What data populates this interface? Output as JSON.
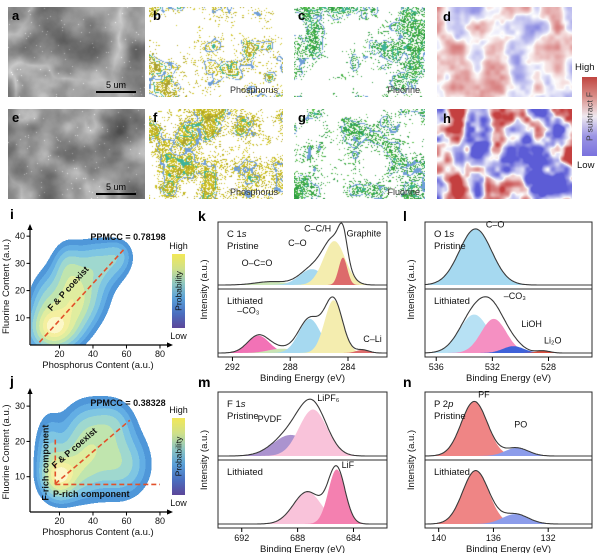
{
  "panels": {
    "a": {
      "letter": "a",
      "type": "sem-micrograph",
      "scalebar": "5 um"
    },
    "b": {
      "letter": "b",
      "type": "element-map",
      "element": "Phosphorus",
      "dot_colors": [
        "#d2c629",
        "#b4a81e"
      ],
      "contour_colors": [
        "#6f9fd8",
        "#3fb39a",
        "#aaa232"
      ]
    },
    "c": {
      "letter": "c",
      "type": "element-map",
      "element": "Fluorine",
      "dot_colors": [
        "#2f9e44",
        "#5cc24e"
      ],
      "contour_colors": [
        "#6f9fd8",
        "#3fb39a"
      ]
    },
    "d": {
      "letter": "d",
      "type": "subtract-map"
    },
    "e": {
      "letter": "e",
      "type": "sem-micrograph",
      "scalebar": "5 um"
    },
    "f": {
      "letter": "f",
      "type": "element-map",
      "element": "Phosphorus",
      "dot_colors": [
        "#d2c629",
        "#b4a81e"
      ],
      "contour_colors": [
        "#6f9fd8",
        "#3fb39a",
        "#aaa232"
      ]
    },
    "g": {
      "letter": "g",
      "type": "element-map",
      "element": "Fluorine",
      "dot_colors": [
        "#2f9e44",
        "#5cc24e"
      ],
      "contour_colors": [
        "#6f9fd8",
        "#3fb39a"
      ]
    },
    "h": {
      "letter": "h",
      "type": "subtract-map"
    }
  },
  "subtract_colorbar": {
    "high": "High",
    "low": "Low",
    "label": "P subtract F",
    "gradient": [
      "#c04540",
      "#d98f89",
      "#efe9f0",
      "#9b94e4",
      "#7a72dd"
    ]
  },
  "chart_data": [
    {
      "id": "i",
      "panel_letter": "i",
      "type": "density2d",
      "annotation": "PPMCC = 0.78198",
      "xlabel": "Phosphorus Content (a.u.)",
      "ylabel": "Fluorine Content (a.u.)",
      "x_ticks": [
        20,
        40,
        60,
        80
      ],
      "y_ticks": [
        10,
        20,
        30,
        40
      ],
      "x_range": [
        3,
        83
      ],
      "y_range": [
        0,
        43
      ],
      "colorbar": {
        "high": "High",
        "low": "Low",
        "label": "Probability",
        "gradient": [
          "#f2e857",
          "#cfe08a",
          "#8ec6c0",
          "#5aa0d8",
          "#4a6fc0",
          "#5c4699"
        ]
      },
      "line_color": "#e2512a",
      "lines": [
        {
          "x1": 8,
          "y1": 1,
          "x2": 59,
          "y2": 35.5
        }
      ],
      "annotations": [
        {
          "text": "F & P coexist",
          "x": 26.5,
          "y": 20,
          "angle": -48
        }
      ],
      "kernels": [
        {
          "x": 17,
          "y": 6,
          "sx": 8,
          "sy": 4.5,
          "w": 1.0
        },
        {
          "x": 27,
          "y": 13,
          "sx": 8,
          "sy": 6,
          "w": 0.5
        },
        {
          "x": 12,
          "y": 13,
          "sx": 6,
          "sy": 7,
          "w": 0.4
        },
        {
          "x": 33,
          "y": 18,
          "sx": 9,
          "sy": 6,
          "w": 0.35
        },
        {
          "x": 24,
          "y": 22,
          "sx": 7,
          "sy": 7,
          "w": 0.28
        },
        {
          "x": 25,
          "y": 29,
          "sx": 5,
          "sy": 5,
          "w": 0.22
        },
        {
          "x": 36,
          "y": 27,
          "sx": 8,
          "sy": 6,
          "w": 0.3
        },
        {
          "x": 47,
          "y": 30,
          "sx": 8,
          "sy": 5,
          "w": 0.28
        },
        {
          "x": 55,
          "y": 33,
          "sx": 5,
          "sy": 3.5,
          "w": 0.18
        }
      ],
      "levels": [
        0.05,
        0.1,
        0.17,
        0.27,
        0.4,
        0.55,
        0.72,
        0.87
      ],
      "level_colors": [
        "#4f97d9",
        "#63aee4",
        "#7fc6e2",
        "#9fd8cf",
        "#c0e5ae",
        "#e0ed9f",
        "#f4ef9f",
        "#fcf7c8"
      ]
    },
    {
      "id": "j",
      "panel_letter": "j",
      "type": "density2d",
      "annotation": "PPMCC = 0.38328",
      "xlabel": "Phosphorus Content (a.u.)",
      "ylabel": "Fluorine Content (a.u.)",
      "x_ticks": [
        20,
        40,
        60,
        80
      ],
      "y_ticks": [
        10,
        20,
        30
      ],
      "x_range": [
        3,
        83
      ],
      "y_range": [
        0,
        34
      ],
      "colorbar": {
        "high": "High",
        "low": "Low",
        "label": "Probability",
        "gradient": [
          "#f2e857",
          "#cfe08a",
          "#8ec6c0",
          "#5aa0d8",
          "#4a6fc0",
          "#5c4699"
        ]
      },
      "line_color": "#e2512a",
      "lines": [
        {
          "x1": 17.5,
          "y1": 8,
          "x2": 62,
          "y2": 26
        },
        {
          "x1": 17.5,
          "y1": 7.8,
          "x2": 17.5,
          "y2": 20.5
        },
        {
          "x1": 17.5,
          "y1": 7.8,
          "x2": 80,
          "y2": 7.8
        }
      ],
      "annotations": [
        {
          "text": "F & P coexist",
          "x": 30,
          "y": 17.5,
          "angle": -41
        },
        {
          "text": "F-rich component",
          "x": 13.5,
          "y": 14,
          "angle": -90
        },
        {
          "text": "P-rich component",
          "x": 39,
          "y": 4.2,
          "angle": 0
        }
      ],
      "kernels": [
        {
          "x": 20,
          "y": 10,
          "sx": 6,
          "sy": 3.5,
          "w": 1.0
        },
        {
          "x": 30,
          "y": 13,
          "sx": 9,
          "sy": 5,
          "w": 0.5
        },
        {
          "x": 45,
          "y": 17,
          "sx": 12,
          "sy": 6.5,
          "w": 0.42
        },
        {
          "x": 37,
          "y": 23,
          "sx": 9,
          "sy": 5,
          "w": 0.3
        },
        {
          "x": 58,
          "y": 13,
          "sx": 9,
          "sy": 5,
          "w": 0.3
        },
        {
          "x": 14,
          "y": 17,
          "sx": 5,
          "sy": 6,
          "w": 0.3
        },
        {
          "x": 52,
          "y": 25,
          "sx": 7,
          "sy": 4,
          "w": 0.22
        }
      ],
      "levels": [
        0.05,
        0.1,
        0.17,
        0.27,
        0.4,
        0.55,
        0.72,
        0.87
      ],
      "level_colors": [
        "#4f97d9",
        "#63aee4",
        "#7fc6e2",
        "#9fd8cf",
        "#c0e5ae",
        "#e0ed9f",
        "#f4ef9f",
        "#fcf7c8"
      ]
    },
    {
      "id": "k",
      "panel_letter": "k",
      "type": "xps",
      "core_level": "C 1",
      "orbital": "s",
      "xlabel": "Binding Energy (eV)",
      "ylabel": "Intensity (a.u.)",
      "x_ticks": [
        292,
        288,
        284
      ],
      "x_range": [
        293.0,
        281.3
      ],
      "series": [
        {
          "name": "Pristine",
          "peaks": [
            {
              "label": "O–C=O",
              "center": 289.3,
              "sigma": 1.1,
              "amp": 0.055,
              "color": "#c9e4b4",
              "label_x": 290.3,
              "label_y": 0.66
            },
            {
              "label": "C–O",
              "center": 286.5,
              "sigma": 0.85,
              "amp": 0.26,
              "color": "#a6d9f0",
              "label_x": 287.5,
              "label_y": 0.36
            },
            {
              "label": "C–C/H",
              "center": 284.95,
              "sigma": 0.75,
              "amp": 0.72,
              "color": "#f4edaf",
              "label_x": 286.1,
              "label_y": 0.14
            },
            {
              "label": "Graphite",
              "center": 284.35,
              "sigma": 0.3,
              "amp": 0.45,
              "color": "#dd6b6b",
              "label_x": 282.9,
              "label_y": 0.22
            }
          ]
        },
        {
          "name": "Lithiated",
          "peaks": [
            {
              "label": "–CO₃",
              "center": 290.2,
              "sigma": 0.75,
              "amp": 0.28,
              "color": "#f272b6",
              "label_x": 290.9,
              "label_y": 0.36
            },
            {
              "label": "",
              "center": 288.6,
              "sigma": 0.9,
              "amp": 0.07,
              "color": "#c9e4b4"
            },
            {
              "label": "",
              "center": 286.65,
              "sigma": 0.75,
              "amp": 0.55,
              "color": "#a6d9f0"
            },
            {
              "label": "",
              "center": 285.0,
              "sigma": 0.62,
              "amp": 0.85,
              "color": "#f4edaf"
            },
            {
              "label": "C–Li",
              "center": 283.0,
              "sigma": 0.45,
              "amp": 0.05,
              "color": "#dd6b6b",
              "label_x": 282.3,
              "label_y": 0.78
            }
          ]
        }
      ]
    },
    {
      "id": "l",
      "panel_letter": "l",
      "type": "xps",
      "core_level": "O 1",
      "orbital": "s",
      "xlabel": "Binding Energy (eV)",
      "ylabel": "Intensity (a.u.)",
      "x_ticks": [
        536,
        532,
        528
      ],
      "x_range": [
        536.8,
        524.9
      ],
      "series": [
        {
          "name": "Pristine",
          "peaks": [
            {
              "label": "C–O",
              "center": 533.2,
              "sigma": 1.15,
              "amp": 0.92,
              "color": "#a6d9f0",
              "label_x": 531.8,
              "label_y": 0.08
            }
          ]
        },
        {
          "name": "Lithiated",
          "peaks": [
            {
              "label": "",
              "center": 533.3,
              "sigma": 1.05,
              "amp": 0.62,
              "color": "#b7e1f4"
            },
            {
              "label": "–CO₃",
              "center": 531.9,
              "sigma": 0.9,
              "amp": 0.55,
              "color": "#f590c2",
              "label_x": 530.4,
              "label_y": 0.15
            },
            {
              "label": "LiOH",
              "center": 530.5,
              "sigma": 0.75,
              "amp": 0.11,
              "color": "#3f62d9",
              "label_x": 529.2,
              "label_y": 0.56
            },
            {
              "label": "Li₂O",
              "center": 528.4,
              "sigma": 0.5,
              "amp": 0.035,
              "color": "#d94f3f",
              "label_x": 527.7,
              "label_y": 0.8
            }
          ]
        }
      ]
    },
    {
      "id": "m",
      "panel_letter": "m",
      "type": "xps",
      "core_level": "F 1",
      "orbital": "s",
      "xlabel": "Binding Energy (eV)",
      "ylabel": "Intensity (a.u.)",
      "x_ticks": [
        692,
        688,
        684
      ],
      "x_range": [
        693.7,
        681.6
      ],
      "series": [
        {
          "name": "Pristine",
          "peaks": [
            {
              "label": "PVDF",
              "center": 688.5,
              "sigma": 1.25,
              "amp": 0.34,
              "color": "#ab93cf",
              "label_x": 690.0,
              "label_y": 0.44
            },
            {
              "label": "LiPF₆",
              "center": 686.9,
              "sigma": 1.0,
              "amp": 0.75,
              "color": "#f9c3da",
              "label_x": 685.8,
              "label_y": 0.13
            }
          ]
        },
        {
          "name": "Lithiated",
          "peaks": [
            {
              "label": "",
              "center": 687.3,
              "sigma": 1.0,
              "amp": 0.52,
              "color": "#f9c3da"
            },
            {
              "label": "LiF",
              "center": 685.2,
              "sigma": 0.6,
              "amp": 0.88,
              "color": "#f480b0",
              "label_x": 684.4,
              "label_y": 0.12
            }
          ]
        }
      ]
    },
    {
      "id": "n",
      "panel_letter": "n",
      "type": "xps",
      "core_level": "P 2",
      "orbital": "p",
      "xlabel": "Binding Energy (eV)",
      "ylabel": "Intensity (a.u.)",
      "x_ticks": [
        140,
        136,
        132
      ],
      "x_range": [
        141.0,
        128.8
      ],
      "series": [
        {
          "name": "Pristine",
          "peaks": [
            {
              "label": "PF",
              "center": 137.4,
              "sigma": 0.95,
              "amp": 0.88,
              "color": "#ef8585",
              "label_x": 136.7,
              "label_y": 0.08
            },
            {
              "label": "PO",
              "center": 134.3,
              "sigma": 0.85,
              "amp": 0.13,
              "color": "#8c9cea",
              "label_x": 134.0,
              "label_y": 0.52
            }
          ]
        },
        {
          "name": "Lithiated",
          "peaks": [
            {
              "label": "",
              "center": 137.3,
              "sigma": 0.95,
              "amp": 0.86,
              "color": "#ef8585"
            },
            {
              "label": "",
              "center": 134.4,
              "sigma": 0.95,
              "amp": 0.16,
              "color": "#8c9cea"
            }
          ]
        }
      ]
    }
  ]
}
